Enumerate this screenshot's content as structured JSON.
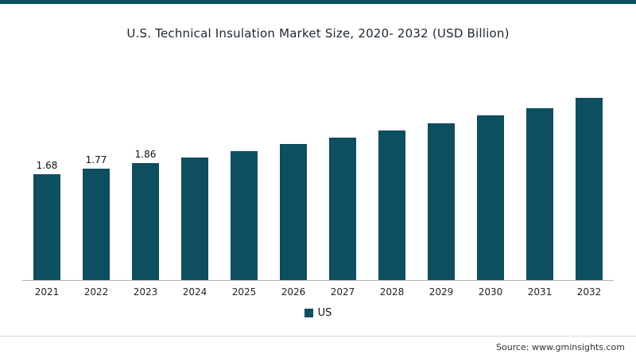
{
  "page": {
    "accent_color": "#0d4e61"
  },
  "chart_data": {
    "type": "bar",
    "title": "U.S. Technical Insulation Market Size, 2020- 2032 (USD Billion)",
    "categories": [
      "2021",
      "2022",
      "2023",
      "2024",
      "2025",
      "2026",
      "2027",
      "2028",
      "2029",
      "2030",
      "2031",
      "2032"
    ],
    "values": [
      1.68,
      1.77,
      1.86,
      1.95,
      2.05,
      2.16,
      2.26,
      2.38,
      2.49,
      2.62,
      2.74,
      2.9
    ],
    "data_labels": [
      "1.68",
      "1.77",
      "1.86",
      "",
      "",
      "",
      "",
      "",
      "",
      "",
      "",
      ""
    ],
    "bar_color": "#0d4e61",
    "ylim": [
      0,
      3.2
    ],
    "grid": false,
    "legend_position": "bottom",
    "legend": [
      {
        "label": "US",
        "color": "#0d4e61"
      }
    ]
  },
  "footer": {
    "source_text": "Source: www.gminsights.com"
  }
}
